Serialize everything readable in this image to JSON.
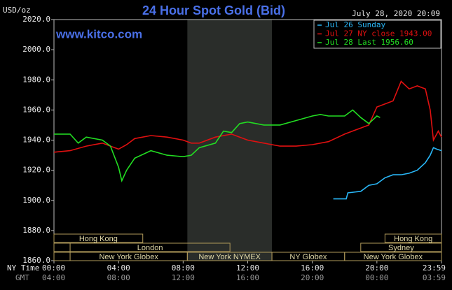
{
  "chart_data": {
    "type": "line",
    "title": "24 Hour Spot Gold (Bid)",
    "y_label": "USD/oz",
    "timestamp": "July 28, 2020 20:09",
    "watermark": "www.kitco.com",
    "x_row_labels": [
      "NY Time",
      "GMT"
    ],
    "xlim": [
      0,
      24
    ],
    "xticks": [
      {
        "value": 0,
        "label": "00:00"
      },
      {
        "value": 4,
        "label": "04:00"
      },
      {
        "value": 8,
        "label": "08:00"
      },
      {
        "value": 12,
        "label": "12:00"
      },
      {
        "value": 16,
        "label": "16:00"
      },
      {
        "value": 20,
        "label": "20:00"
      },
      {
        "value": 24,
        "label": "23:59"
      }
    ],
    "gmt_tick_labels": [
      "04:00",
      "08:00",
      "12:00",
      "16:00",
      "20:00",
      "00:00",
      "03:59"
    ],
    "ylim": [
      1860,
      2020
    ],
    "yticks": [
      {
        "value": 1860,
        "label": "1860.0"
      },
      {
        "value": 1880,
        "label": "1880.0"
      },
      {
        "value": 1900,
        "label": "1900.0"
      },
      {
        "value": 1920,
        "label": "1920.0"
      },
      {
        "value": 1940,
        "label": "1940.0"
      },
      {
        "value": 1960,
        "label": "1960.0"
      },
      {
        "value": 1980,
        "label": "1980.0"
      },
      {
        "value": 2000,
        "label": "2000.0"
      },
      {
        "value": 2020,
        "label": "2020.0"
      }
    ],
    "sessions": [
      {
        "label": "Hong Kong",
        "start": 0,
        "end": 5.5
      },
      {
        "label": "Hong Kong",
        "start": 20.5,
        "end": 24
      },
      {
        "label": "London",
        "start": 1,
        "end": 10.9
      },
      {
        "label": "Sydney",
        "start": 19,
        "end": 24
      },
      {
        "label": "New York Globex",
        "start": 1,
        "end": 8.26
      },
      {
        "label": "New York NYMEX",
        "start": 8.26,
        "end": 13.5
      },
      {
        "label": "NY Globex",
        "start": 13.5,
        "end": 18
      },
      {
        "label": "New York Globex",
        "start": 18,
        "end": 24
      }
    ],
    "series": [
      {
        "name": "Jul 26 Sunday",
        "color": "#29b6f6",
        "x": [
          17.3,
          18.1,
          18.2,
          19,
          19.5,
          20,
          20.5,
          21,
          21.5,
          22,
          22.5,
          23,
          23.3,
          23.5,
          23.7,
          24
        ],
        "values": [
          1901,
          1901,
          1905,
          1906,
          1910,
          1911,
          1915,
          1917,
          1917,
          1918,
          1920,
          1925,
          1930,
          1935,
          1934,
          1933
        ]
      },
      {
        "name": "Jul 27 NY close 1943.00",
        "color": "#e01010",
        "x": [
          0,
          1,
          2,
          3,
          3.5,
          4,
          4.5,
          5,
          6,
          7,
          8,
          8.5,
          9,
          10,
          11,
          11.5,
          12,
          13,
          14,
          15,
          16,
          17,
          18,
          19,
          19.5,
          20,
          20.5,
          21,
          21.5,
          22,
          22.5,
          23,
          23.3,
          23.5,
          23.8,
          24
        ],
        "values": [
          1932,
          1933,
          1936,
          1938,
          1936,
          1934,
          1937,
          1941,
          1943,
          1942,
          1940,
          1938,
          1938,
          1942,
          1944,
          1942,
          1940,
          1938,
          1936,
          1936,
          1937,
          1939,
          1944,
          1948,
          1950,
          1962,
          1964,
          1966,
          1979,
          1974,
          1976,
          1974,
          1960,
          1940,
          1946,
          1942
        ]
      },
      {
        "name": "Jul 28 Last 1956.60",
        "color": "#22dd22",
        "x": [
          0,
          1,
          1.5,
          2,
          3,
          3.5,
          4,
          4.2,
          4.5,
          5,
          6,
          7,
          8,
          8.5,
          9,
          10,
          10.5,
          11,
          11.5,
          12,
          13,
          14,
          15,
          16,
          16.5,
          17,
          18,
          18.5,
          19,
          19.5,
          20,
          20.2
        ],
        "values": [
          1944,
          1944,
          1938,
          1942,
          1940,
          1936,
          1922,
          1913,
          1920,
          1928,
          1933,
          1930,
          1929,
          1930,
          1935,
          1938,
          1946,
          1945,
          1951,
          1952,
          1950,
          1950,
          1953,
          1956,
          1957,
          1956,
          1956,
          1960,
          1955,
          1951,
          1956,
          1955
        ]
      }
    ]
  }
}
